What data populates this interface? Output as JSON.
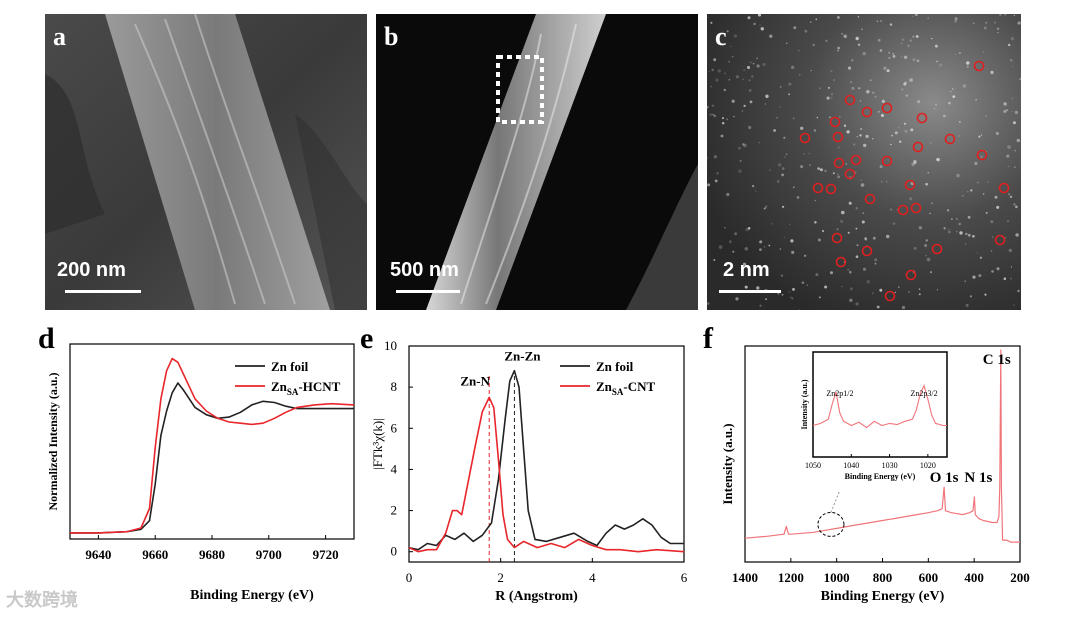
{
  "micrographs": [
    {
      "label": "a",
      "scale": "200 nm"
    },
    {
      "label": "b",
      "scale": "500 nm"
    },
    {
      "label": "c",
      "scale": "2 nm"
    }
  ],
  "colors": {
    "red": "#e8262b",
    "black": "#222222",
    "ring": "#e02020",
    "xps": "#f0757a"
  },
  "watermark": "大数跨境",
  "chart_data": [
    {
      "panel": "d",
      "type": "line",
      "xlabel": "Binding Energy (eV)",
      "ylabel": "Normalized Intensity (a.u.)",
      "xlim": [
        9630,
        9730
      ],
      "ylim": [
        0,
        1.6
      ],
      "xticks": [
        9640,
        9660,
        9680,
        9700,
        9720
      ],
      "legend_position": "top-right",
      "series": [
        {
          "name": "Zn foil",
          "legend_main": "Zn foil",
          "legend_sub": "",
          "legend_tail": "",
          "color": "#222222",
          "x": [
            9630,
            9640,
            9650,
            9655,
            9658,
            9660,
            9662,
            9664,
            9666,
            9668,
            9670,
            9674,
            9678,
            9682,
            9686,
            9690,
            9694,
            9698,
            9702,
            9706,
            9710,
            9716,
            9722,
            9730
          ],
          "y": [
            0.05,
            0.05,
            0.06,
            0.08,
            0.15,
            0.45,
            0.85,
            1.05,
            1.2,
            1.28,
            1.22,
            1.08,
            1.02,
            0.99,
            1.0,
            1.04,
            1.1,
            1.13,
            1.12,
            1.09,
            1.07,
            1.07,
            1.07,
            1.07
          ]
        },
        {
          "name": "ZnSA-HCNT",
          "legend_main": "Zn",
          "legend_sub": "SA",
          "legend_tail": "-HCNT",
          "color": "#e8262b",
          "x": [
            9630,
            9640,
            9650,
            9655,
            9658,
            9660,
            9662,
            9664,
            9666,
            9668,
            9670,
            9674,
            9678,
            9682,
            9686,
            9690,
            9694,
            9698,
            9702,
            9706,
            9710,
            9716,
            9722,
            9730
          ],
          "y": [
            0.05,
            0.05,
            0.06,
            0.09,
            0.25,
            0.75,
            1.15,
            1.38,
            1.48,
            1.45,
            1.35,
            1.15,
            1.05,
            0.99,
            0.96,
            0.95,
            0.94,
            0.95,
            0.99,
            1.04,
            1.08,
            1.1,
            1.11,
            1.1
          ]
        }
      ]
    },
    {
      "panel": "e",
      "type": "line",
      "xlabel": "R (Angstrom)",
      "ylabel": "|FTk³χ(k)|",
      "xlim": [
        0,
        6
      ],
      "ylim": [
        -0.5,
        10
      ],
      "xticks": [
        0,
        2,
        4,
        6
      ],
      "yticks": [
        0,
        2,
        4,
        6,
        8,
        10
      ],
      "annotations": [
        {
          "text": "Zn-N",
          "x": 1.75,
          "y": 7.5
        },
        {
          "text": "Zn-Zn",
          "x": 2.3,
          "y": 8.8
        }
      ],
      "dashed_lines": [
        1.75,
        2.3
      ],
      "legend_position": "top-right",
      "series": [
        {
          "name": "Zn foil",
          "legend_main": "Zn foil",
          "legend_sub": "",
          "legend_tail": "",
          "color": "#222222",
          "x": [
            0,
            0.2,
            0.4,
            0.6,
            0.8,
            1.0,
            1.2,
            1.4,
            1.6,
            1.8,
            1.95,
            2.1,
            2.2,
            2.3,
            2.4,
            2.5,
            2.6,
            2.75,
            3.0,
            3.3,
            3.6,
            3.9,
            4.1,
            4.3,
            4.5,
            4.7,
            4.9,
            5.1,
            5.3,
            5.5,
            5.7,
            6.0
          ],
          "y": [
            0.2,
            0.1,
            0.4,
            0.3,
            0.8,
            0.6,
            0.9,
            0.5,
            0.8,
            1.4,
            3.5,
            6.5,
            8.3,
            8.8,
            8.0,
            5.0,
            2.0,
            0.6,
            0.5,
            0.7,
            0.9,
            0.5,
            0.3,
            0.9,
            1.3,
            1.1,
            1.3,
            1.6,
            1.3,
            0.7,
            0.4,
            0.4
          ]
        },
        {
          "name": "ZnSA-CNT",
          "legend_main": "Zn",
          "legend_sub": "SA",
          "legend_tail": "-CNT",
          "color": "#e8262b",
          "x": [
            0,
            0.2,
            0.4,
            0.6,
            0.8,
            0.95,
            1.05,
            1.15,
            1.3,
            1.45,
            1.6,
            1.75,
            1.85,
            1.95,
            2.05,
            2.15,
            2.3,
            2.5,
            2.8,
            3.1,
            3.4,
            3.7,
            4.0,
            4.3,
            4.6,
            5.0,
            5.4,
            6.0
          ],
          "y": [
            0.2,
            0.0,
            0.1,
            0.1,
            0.9,
            2.0,
            2.0,
            1.8,
            3.5,
            5.2,
            6.8,
            7.5,
            7.0,
            4.5,
            1.8,
            0.6,
            0.2,
            0.5,
            0.2,
            0.4,
            0.2,
            0.6,
            0.3,
            0.1,
            0.1,
            0.0,
            0.1,
            0.0
          ]
        }
      ]
    },
    {
      "panel": "f",
      "type": "line",
      "xlabel": "Binding Energy (eV)",
      "ylabel": "Intensity (a.u.)",
      "xlim": [
        1400,
        200
      ],
      "reversed_x": true,
      "xticks": [
        1400,
        1200,
        1000,
        800,
        600,
        400,
        200
      ],
      "annotations": [
        {
          "text": "C 1s",
          "x": 284
        },
        {
          "text": "O 1s",
          "x": 531
        },
        {
          "text": "N 1s",
          "x": 399
        }
      ],
      "series": [
        {
          "name": "",
          "color": "#f0757a",
          "x": [
            1400,
            1300,
            1230,
            1220,
            1210,
            1200,
            1100,
            1050,
            1000,
            950,
            900,
            850,
            800,
            750,
            700,
            650,
            600,
            560,
            540,
            531,
            525,
            500,
            450,
            420,
            405,
            399,
            395,
            380,
            360,
            320,
            300,
            292,
            288,
            284,
            281,
            276,
            260,
            240,
            220,
            200
          ],
          "y": [
            0.04,
            0.05,
            0.06,
            0.1,
            0.06,
            0.06,
            0.07,
            0.08,
            0.09,
            0.1,
            0.11,
            0.12,
            0.13,
            0.14,
            0.15,
            0.16,
            0.17,
            0.18,
            0.19,
            0.3,
            0.18,
            0.17,
            0.16,
            0.17,
            0.18,
            0.25,
            0.16,
            0.14,
            0.13,
            0.12,
            0.12,
            0.15,
            0.3,
            1.0,
            0.3,
            0.03,
            0.03,
            0.02,
            0.02,
            0.02
          ]
        }
      ],
      "inset": {
        "xlabel": "Binding Energy (eV)",
        "ylabel": "Intensity (a.u.)",
        "xlim": [
          1050,
          1015
        ],
        "xticks": [
          1050,
          1040,
          1030,
          1020
        ],
        "peaks": [
          {
            "text": "Zn2p1/2",
            "x": 1044
          },
          {
            "text": "Zn2p3/2",
            "x": 1021
          }
        ],
        "x": [
          1050,
          1048,
          1046,
          1045,
          1044,
          1043,
          1042,
          1040,
          1038,
          1036,
          1034,
          1032,
          1030,
          1028,
          1026,
          1024,
          1023,
          1022,
          1021,
          1020,
          1019,
          1018,
          1016,
          1015
        ],
        "y": [
          0.3,
          0.32,
          0.36,
          0.5,
          0.62,
          0.42,
          0.34,
          0.3,
          0.33,
          0.28,
          0.34,
          0.3,
          0.32,
          0.31,
          0.34,
          0.36,
          0.45,
          0.6,
          0.68,
          0.55,
          0.4,
          0.32,
          0.3,
          0.3
        ]
      }
    }
  ]
}
